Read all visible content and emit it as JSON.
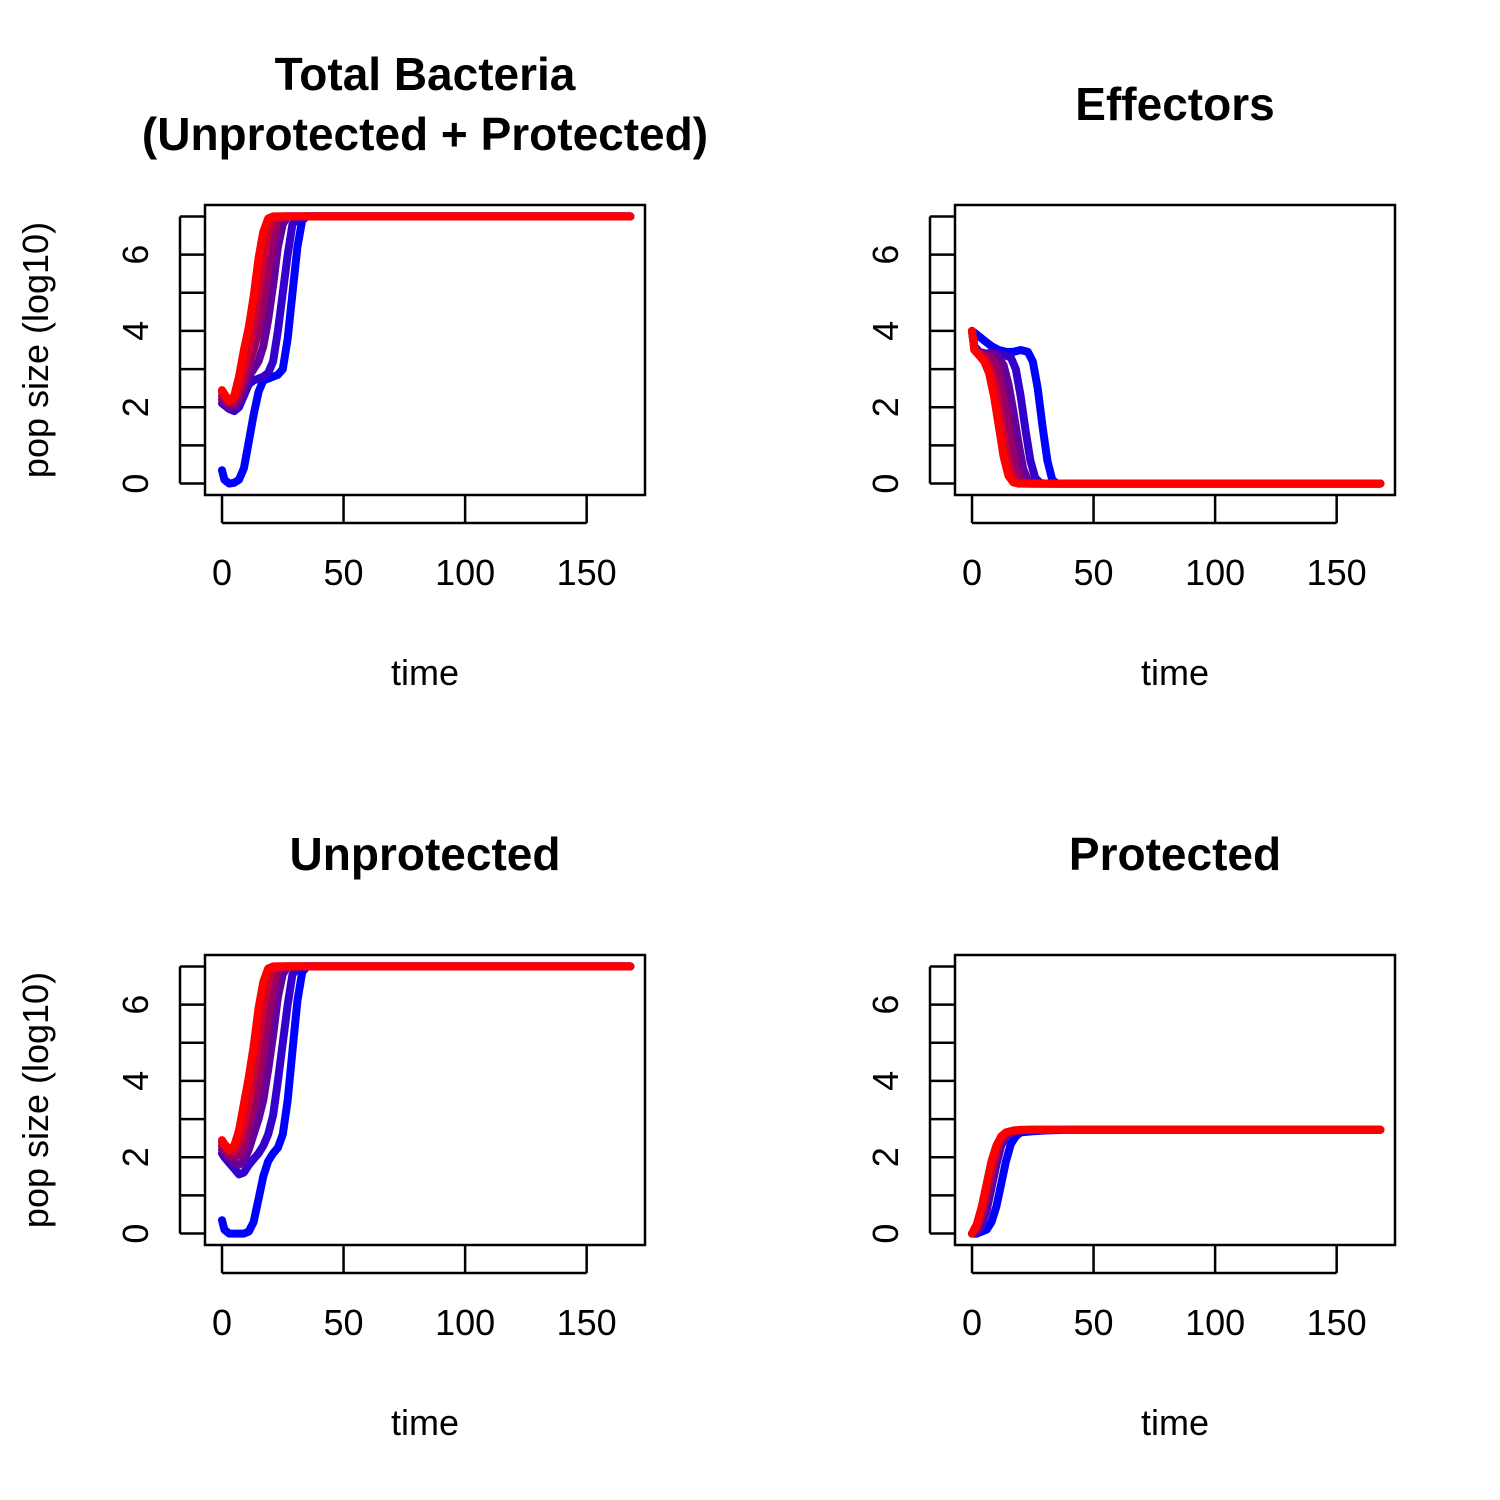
{
  "chart_data": [
    {
      "type": "line",
      "title": [
        "Total Bacteria",
        "(Unprotected + Protected)"
      ],
      "xlabel": "time",
      "ylabel": "pop size (log10)",
      "xlim": [
        -7,
        174
      ],
      "ylim": [
        -0.3,
        7.3
      ],
      "xticks": [
        0,
        50,
        100,
        150
      ],
      "yticks": [
        0,
        2,
        4,
        6
      ],
      "yminor": [
        1,
        3,
        5,
        7
      ],
      "color_range": [
        "#0000FF",
        "#FF0000"
      ],
      "series": [
        {
          "x": [
            0,
            1,
            3,
            5,
            7,
            9,
            11,
            13,
            15,
            17,
            19,
            21,
            23,
            25,
            27,
            29,
            31,
            33,
            35,
            37,
            40,
            60,
            100,
            140,
            168
          ],
          "values": [
            0.35,
            0.1,
            0.0,
            0.02,
            0.1,
            0.4,
            1.1,
            1.8,
            2.4,
            2.7,
            2.75,
            2.8,
            2.85,
            3.0,
            3.8,
            5.0,
            6.2,
            6.9,
            7.0,
            7.0,
            7.0,
            7.0,
            7.0,
            7.0,
            7.0
          ]
        },
        {
          "x": [
            0,
            1,
            3,
            5,
            7,
            9,
            11,
            13,
            15,
            17,
            19,
            21,
            23,
            25,
            27,
            29,
            32,
            35,
            40,
            60,
            100,
            140,
            168
          ],
          "values": [
            2.1,
            2.05,
            1.95,
            1.9,
            2.0,
            2.3,
            2.6,
            2.7,
            2.75,
            2.8,
            2.9,
            3.2,
            4.0,
            5.0,
            6.0,
            6.8,
            7.0,
            7.0,
            7.0,
            7.0,
            7.0,
            7.0,
            7.0
          ]
        },
        {
          "x": [
            0,
            1,
            3,
            5,
            7,
            9,
            11,
            13,
            15,
            17,
            19,
            21,
            23,
            25,
            27,
            30,
            35,
            60,
            100,
            140,
            168
          ],
          "values": [
            2.2,
            2.1,
            2.0,
            2.0,
            2.15,
            2.5,
            2.8,
            3.0,
            3.2,
            3.6,
            4.3,
            5.2,
            6.2,
            6.8,
            7.0,
            7.0,
            7.0,
            7.0,
            7.0,
            7.0,
            7.0
          ]
        },
        {
          "x": [
            0,
            1,
            3,
            5,
            7,
            9,
            11,
            13,
            15,
            17,
            19,
            21,
            23,
            25,
            28,
            35,
            60,
            100,
            140,
            168
          ],
          "values": [
            2.3,
            2.2,
            2.1,
            2.1,
            2.3,
            2.7,
            3.1,
            3.5,
            4.0,
            4.7,
            5.6,
            6.4,
            6.9,
            7.0,
            7.0,
            7.0,
            7.0,
            7.0,
            7.0,
            7.0
          ]
        },
        {
          "x": [
            0,
            1,
            3,
            5,
            7,
            9,
            11,
            13,
            15,
            17,
            19,
            21,
            23,
            26,
            35,
            60,
            100,
            140,
            168
          ],
          "values": [
            2.4,
            2.3,
            2.15,
            2.2,
            2.5,
            3.0,
            3.5,
            4.2,
            5.0,
            5.9,
            6.6,
            6.95,
            7.0,
            7.0,
            7.0,
            7.0,
            7.0,
            7.0,
            7.0
          ]
        },
        {
          "x": [
            0,
            1,
            3,
            5,
            7,
            9,
            11,
            13,
            15,
            17,
            19,
            21,
            24,
            35,
            60,
            100,
            140,
            168
          ],
          "values": [
            2.45,
            2.35,
            2.15,
            2.3,
            2.8,
            3.5,
            4.1,
            4.9,
            5.9,
            6.6,
            6.95,
            7.0,
            7.0,
            7.0,
            7.0,
            7.0,
            7.0,
            7.0
          ]
        }
      ]
    },
    {
      "type": "line",
      "title": [
        "Effectors"
      ],
      "xlabel": "time",
      "ylabel": "",
      "xlim": [
        -7,
        174
      ],
      "ylim": [
        -0.3,
        7.3
      ],
      "xticks": [
        0,
        50,
        100,
        150
      ],
      "yticks": [
        0,
        2,
        4,
        6
      ],
      "yminor": [
        1,
        3,
        5,
        7
      ],
      "color_range": [
        "#0000FF",
        "#FF0000"
      ],
      "series": [
        {
          "x": [
            0,
            2,
            5,
            8,
            11,
            14,
            17,
            20,
            23,
            25,
            27,
            29,
            31,
            33,
            35,
            40,
            60,
            100,
            140,
            168
          ],
          "values": [
            4.0,
            3.9,
            3.75,
            3.6,
            3.5,
            3.45,
            3.45,
            3.5,
            3.45,
            3.2,
            2.5,
            1.5,
            0.6,
            0.1,
            0.0,
            0.0,
            0.0,
            0.0,
            0.0,
            0.0
          ]
        },
        {
          "x": [
            0,
            1,
            3,
            6,
            9,
            12,
            14,
            16,
            18,
            20,
            22,
            24,
            26,
            28,
            30,
            40,
            60,
            100,
            140,
            168
          ],
          "values": [
            4.0,
            3.6,
            3.45,
            3.4,
            3.45,
            3.4,
            3.35,
            3.3,
            3.0,
            2.3,
            1.4,
            0.6,
            0.15,
            0.02,
            0.0,
            0.0,
            0.0,
            0.0,
            0.0,
            0.0
          ]
        },
        {
          "x": [
            0,
            1,
            3,
            6,
            9,
            11,
            13,
            15,
            17,
            19,
            21,
            23,
            25,
            27,
            40,
            60,
            100,
            140,
            168
          ],
          "values": [
            4.0,
            3.55,
            3.4,
            3.4,
            3.4,
            3.3,
            3.1,
            2.6,
            1.9,
            1.1,
            0.4,
            0.08,
            0.01,
            0.0,
            0.0,
            0.0,
            0.0,
            0.0,
            0.0
          ]
        },
        {
          "x": [
            0,
            1,
            3,
            6,
            8,
            10,
            12,
            14,
            16,
            18,
            20,
            22,
            24,
            40,
            60,
            100,
            140,
            168
          ],
          "values": [
            4.0,
            3.5,
            3.4,
            3.35,
            3.3,
            3.1,
            2.6,
            1.9,
            1.1,
            0.4,
            0.1,
            0.01,
            0.0,
            0.0,
            0.0,
            0.0,
            0.0,
            0.0
          ]
        },
        {
          "x": [
            0,
            1,
            3,
            5,
            7,
            9,
            11,
            13,
            15,
            17,
            19,
            21,
            40,
            60,
            100,
            140,
            168
          ],
          "values": [
            4.0,
            3.5,
            3.4,
            3.3,
            3.1,
            2.7,
            2.0,
            1.2,
            0.5,
            0.12,
            0.02,
            0.0,
            0.0,
            0.0,
            0.0,
            0.0,
            0.0
          ]
        },
        {
          "x": [
            0,
            1,
            3,
            5,
            7,
            9,
            11,
            13,
            15,
            17,
            19,
            40,
            60,
            100,
            140,
            168
          ],
          "values": [
            4.0,
            3.5,
            3.35,
            3.2,
            2.9,
            2.3,
            1.5,
            0.7,
            0.2,
            0.03,
            0.0,
            0.0,
            0.0,
            0.0,
            0.0,
            0.0
          ]
        }
      ]
    },
    {
      "type": "line",
      "title": [
        "Unprotected"
      ],
      "xlabel": "time",
      "ylabel": "pop size (log10)",
      "xlim": [
        -7,
        174
      ],
      "ylim": [
        -0.3,
        7.3
      ],
      "xticks": [
        0,
        50,
        100,
        150
      ],
      "yticks": [
        0,
        2,
        4,
        6
      ],
      "yminor": [
        1,
        3,
        5,
        7
      ],
      "color_range": [
        "#0000FF",
        "#FF0000"
      ],
      "series": [
        {
          "x": [
            0,
            1,
            3,
            5,
            7,
            9,
            11,
            13,
            15,
            17,
            19,
            21,
            23,
            25,
            27,
            29,
            31,
            33,
            35,
            37,
            40,
            60,
            100,
            140,
            168
          ],
          "values": [
            0.35,
            0.1,
            0.0,
            0.0,
            0.0,
            0.0,
            0.05,
            0.3,
            0.9,
            1.5,
            1.9,
            2.1,
            2.25,
            2.6,
            3.5,
            4.8,
            6.1,
            6.85,
            7.0,
            7.0,
            7.0,
            7.0,
            7.0,
            7.0,
            7.0
          ]
        },
        {
          "x": [
            0,
            1,
            3,
            5,
            7,
            9,
            11,
            13,
            15,
            17,
            19,
            21,
            23,
            25,
            27,
            29,
            32,
            35,
            40,
            60,
            100,
            140,
            168
          ],
          "values": [
            2.1,
            2.0,
            1.85,
            1.7,
            1.55,
            1.6,
            1.8,
            1.95,
            2.1,
            2.3,
            2.6,
            3.1,
            4.0,
            5.0,
            6.0,
            6.8,
            7.0,
            7.0,
            7.0,
            7.0,
            7.0,
            7.0,
            7.0
          ]
        },
        {
          "x": [
            0,
            1,
            3,
            5,
            7,
            9,
            11,
            13,
            15,
            17,
            19,
            21,
            23,
            25,
            27,
            30,
            35,
            60,
            100,
            140,
            168
          ],
          "values": [
            2.2,
            2.1,
            1.95,
            1.85,
            1.8,
            1.9,
            2.2,
            2.6,
            3.0,
            3.5,
            4.3,
            5.2,
            6.2,
            6.8,
            7.0,
            7.0,
            7.0,
            7.0,
            7.0,
            7.0,
            7.0
          ]
        },
        {
          "x": [
            0,
            1,
            3,
            5,
            7,
            9,
            11,
            13,
            15,
            17,
            19,
            21,
            23,
            25,
            28,
            35,
            60,
            100,
            140,
            168
          ],
          "values": [
            2.3,
            2.2,
            2.05,
            2.0,
            2.05,
            2.3,
            2.8,
            3.3,
            3.9,
            4.7,
            5.6,
            6.4,
            6.9,
            7.0,
            7.0,
            7.0,
            7.0,
            7.0,
            7.0,
            7.0
          ]
        },
        {
          "x": [
            0,
            1,
            3,
            5,
            7,
            9,
            11,
            13,
            15,
            17,
            19,
            21,
            23,
            26,
            35,
            60,
            100,
            140,
            168
          ],
          "values": [
            2.4,
            2.3,
            2.15,
            2.15,
            2.35,
            2.8,
            3.4,
            4.1,
            5.0,
            5.9,
            6.6,
            6.95,
            7.0,
            7.0,
            7.0,
            7.0,
            7.0,
            7.0,
            7.0
          ]
        },
        {
          "x": [
            0,
            1,
            3,
            5,
            7,
            9,
            11,
            13,
            15,
            17,
            19,
            21,
            24,
            35,
            60,
            100,
            140,
            168
          ],
          "values": [
            2.45,
            2.35,
            2.2,
            2.3,
            2.7,
            3.4,
            4.1,
            4.9,
            5.9,
            6.6,
            6.95,
            7.0,
            7.0,
            7.0,
            7.0,
            7.0,
            7.0,
            7.0
          ]
        }
      ]
    },
    {
      "type": "line",
      "title": [
        "Protected"
      ],
      "xlabel": "time",
      "ylabel": "",
      "xlim": [
        -7,
        174
      ],
      "ylim": [
        -0.3,
        7.3
      ],
      "xticks": [
        0,
        50,
        100,
        150
      ],
      "yticks": [
        0,
        2,
        4,
        6
      ],
      "yminor": [
        1,
        3,
        5,
        7
      ],
      "color_range": [
        "#0000FF",
        "#FF0000"
      ],
      "series": [
        {
          "x": [
            0,
            2,
            4,
            6,
            8,
            10,
            12,
            14,
            16,
            18,
            20,
            25,
            30,
            40,
            60,
            100,
            140,
            168
          ],
          "values": [
            0.0,
            0.0,
            0.05,
            0.1,
            0.3,
            0.7,
            1.3,
            1.9,
            2.35,
            2.55,
            2.65,
            2.68,
            2.7,
            2.72,
            2.72,
            2.72,
            2.72,
            2.72
          ]
        },
        {
          "x": [
            0,
            2,
            4,
            6,
            8,
            10,
            12,
            14,
            17,
            20,
            25,
            30,
            40,
            60,
            100,
            140,
            168
          ],
          "values": [
            0.0,
            0.05,
            0.2,
            0.6,
            1.2,
            1.8,
            2.3,
            2.55,
            2.65,
            2.7,
            2.72,
            2.72,
            2.72,
            2.72,
            2.72,
            2.72,
            2.72
          ]
        },
        {
          "x": [
            0,
            2,
            4,
            6,
            8,
            10,
            12,
            14,
            17,
            20,
            25,
            30,
            40,
            60,
            100,
            140,
            168
          ],
          "values": [
            0.0,
            0.15,
            0.5,
            1.0,
            1.6,
            2.1,
            2.45,
            2.6,
            2.68,
            2.71,
            2.72,
            2.72,
            2.72,
            2.72,
            2.72,
            2.72,
            2.72
          ]
        },
        {
          "x": [
            0,
            2,
            4,
            6,
            8,
            10,
            12,
            14,
            17,
            20,
            25,
            30,
            40,
            60,
            100,
            140,
            168
          ],
          "values": [
            0.0,
            0.25,
            0.7,
            1.3,
            1.9,
            2.3,
            2.55,
            2.65,
            2.7,
            2.72,
            2.72,
            2.72,
            2.72,
            2.72,
            2.72,
            2.72,
            2.72
          ]
        }
      ]
    }
  ]
}
